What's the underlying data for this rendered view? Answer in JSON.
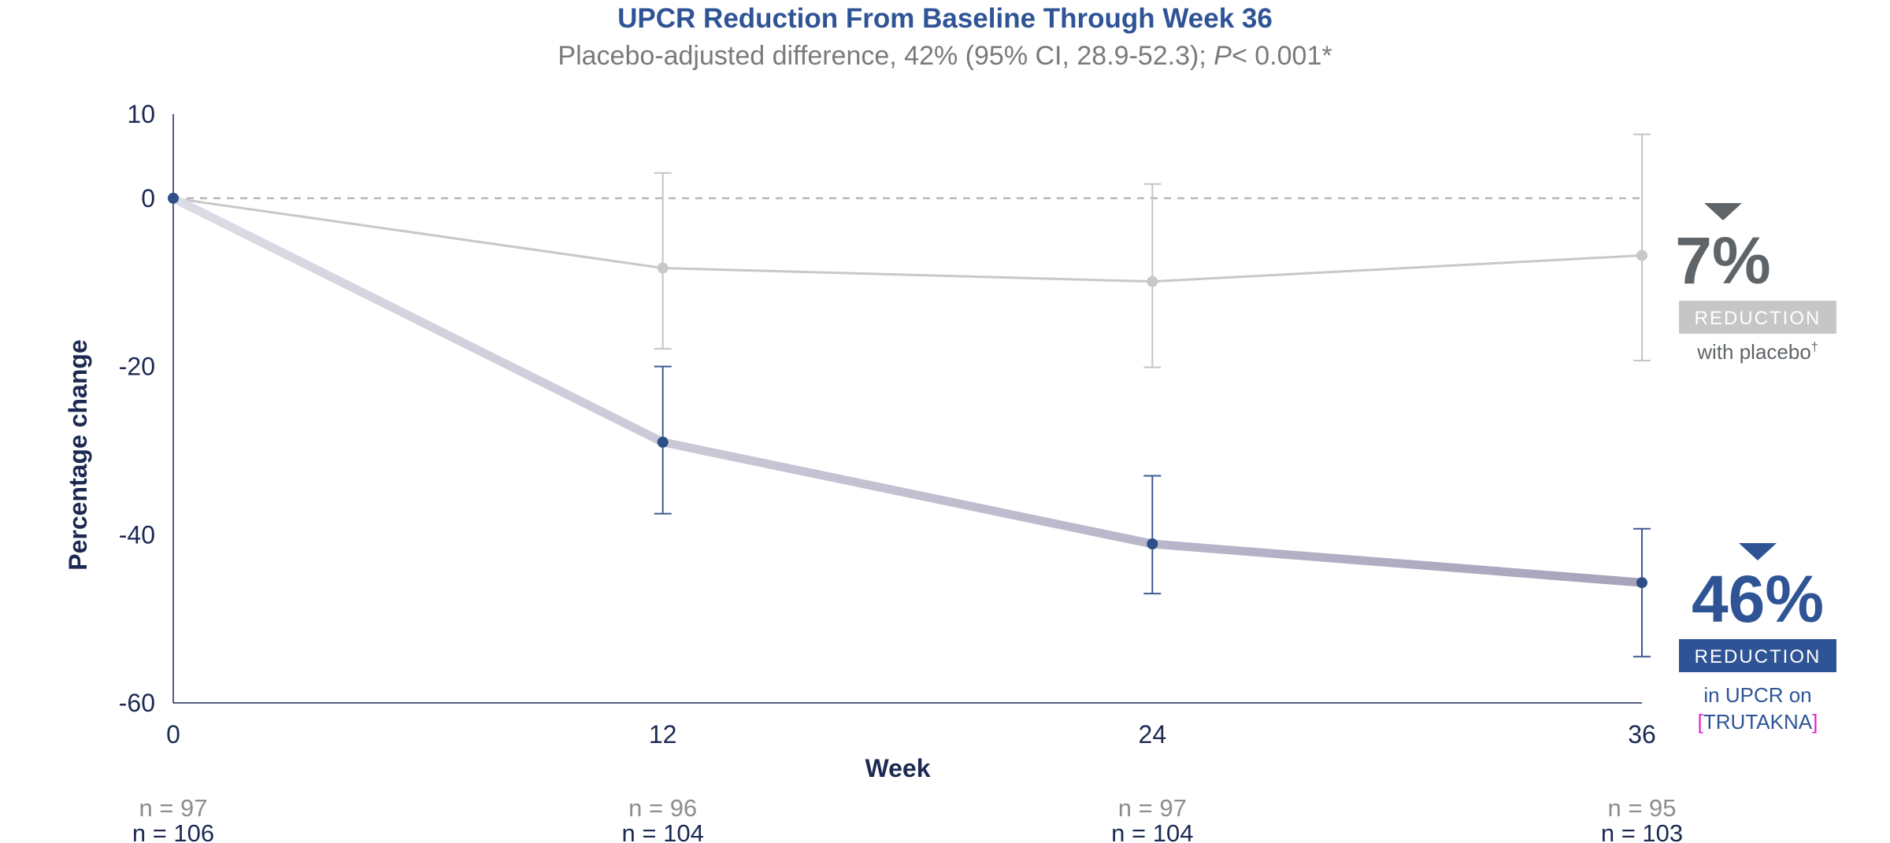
{
  "chart_data": {
    "type": "line",
    "title": "UPCR Reduction From Baseline Through Week 36",
    "subtitle": {
      "prefix": "Placebo-adjusted difference, 42% (95% CI, 28.9-52.3); ",
      "p_letter": "P",
      "suffix": "< 0.001*"
    },
    "xlabel": "Week",
    "ylabel": "Percentage change",
    "x": [
      0,
      12,
      24,
      36
    ],
    "x_tick_labels": [
      "0",
      "12",
      "24",
      "36"
    ],
    "ylim": [
      -60,
      10
    ],
    "y_ticks": [
      10,
      0,
      -20,
      -40,
      -60
    ],
    "y_tick_labels": [
      "10",
      "0",
      "-20",
      "-40",
      "-60"
    ],
    "reference_line": 0,
    "series": [
      {
        "key": "placebo",
        "color": "#c8c8c8",
        "values": [
          0,
          -8.3,
          -9.9,
          -6.8
        ],
        "ci_low": [
          null,
          -17.9,
          -20.1,
          -19.3
        ],
        "ci_high": [
          null,
          3.0,
          1.7,
          7.6
        ],
        "n": [
          "n = 97",
          "n = 96",
          "n = 97",
          "n = 95"
        ]
      },
      {
        "key": "trutakna",
        "color": "#2f4f87",
        "line_color": "#b4b1c6",
        "values": [
          0,
          -29.0,
          -41.1,
          -45.7
        ],
        "ci_low": [
          null,
          -37.5,
          -47.0,
          -54.5
        ],
        "ci_high": [
          null,
          -20.0,
          -33.0,
          -39.3
        ],
        "n": [
          "n = 106",
          "n = 104",
          "n = 104",
          "n = 103"
        ]
      }
    ],
    "annotations": {
      "placebo": {
        "value": "7%",
        "box": "REDUCTION",
        "text": "with placebo",
        "sup": "†",
        "box_color": "#c6c6c6"
      },
      "trutakna": {
        "value": "46%",
        "box": "REDUCTION",
        "text_line1": "in UPCR on",
        "text_line2": "TRUTAKNA",
        "bracket_left": "[",
        "bracket_right": "]",
        "bracket_color": "#e020c8",
        "box_color": "#2f5496"
      }
    }
  }
}
